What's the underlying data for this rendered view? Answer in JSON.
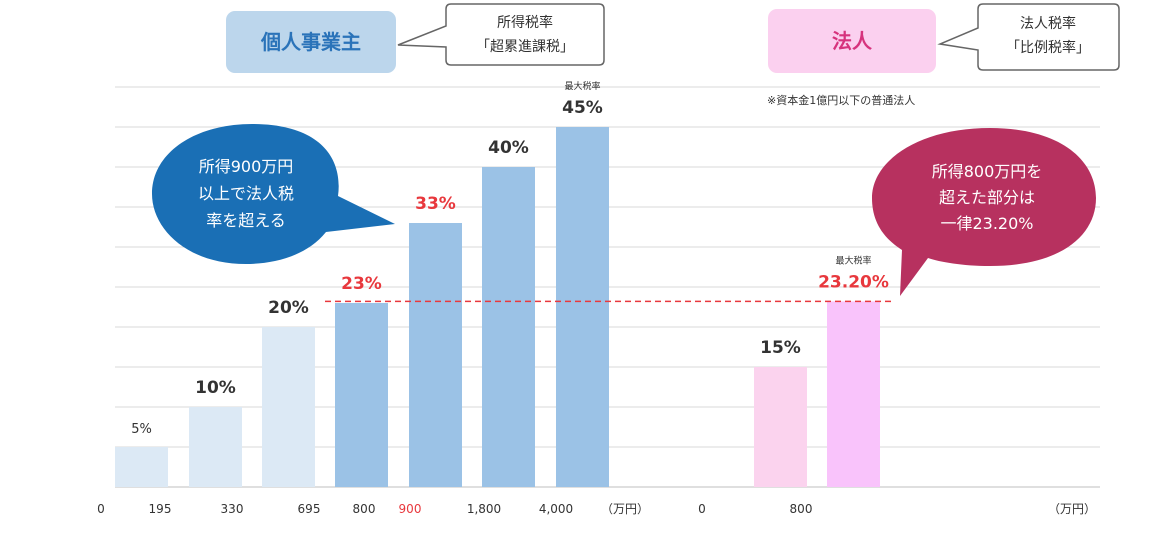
{
  "labels": {
    "individual_box": "個人事業主",
    "individual_callout": [
      "所得税率",
      "「超累進課税」"
    ],
    "corporate_box": "法人",
    "corporate_callout": [
      "法人税率",
      "「比例税率」"
    ],
    "note": "※資本金1億円以下の普通法人",
    "bubble_left": [
      "所得900万円",
      "以上で法人税",
      "率を超える"
    ],
    "bubble_right": [
      "所得800万円を",
      "超えた部分は",
      "一律23.20%"
    ],
    "max_rate": "最大税率"
  },
  "chart_data": [
    {
      "type": "bar",
      "name": "individual",
      "x_ticks": [
        "0",
        "195",
        "330",
        "695",
        "800",
        "900",
        "1,800",
        "4,000"
      ],
      "x_unit": "（万円）",
      "categories": [
        "0–195",
        "195–330",
        "330–695",
        "695–900",
        "900–1,800",
        "1,800–4,000",
        "4,000–"
      ],
      "values": [
        5,
        10,
        20,
        23,
        33,
        40,
        45
      ],
      "value_labels": [
        "5%",
        "10%",
        "20%",
        "23%",
        "33%",
        "40%",
        "45%"
      ],
      "highlight_indices": [
        3,
        4
      ],
      "max_index": 6,
      "ylim": [
        0,
        45
      ]
    },
    {
      "type": "bar",
      "name": "corporate",
      "x_ticks": [
        "0",
        "800"
      ],
      "x_unit": "（万円）",
      "categories": [
        "0–800",
        "800–"
      ],
      "values": [
        15,
        23.2
      ],
      "value_labels": [
        "15%",
        "23.20%"
      ],
      "highlight_indices": [
        1
      ],
      "max_index": 1,
      "ylim": [
        0,
        45
      ]
    }
  ],
  "reference_line": {
    "value": 23.2,
    "color": "#e8383d"
  },
  "colors": {
    "indiv_bar_light": "#dce9f5",
    "indiv_bar_dark": "#9bc2e6",
    "corp_bar_light": "#fbd3ee",
    "corp_bar_dark": "#f9c3fb",
    "highlight_text": "#e8383d",
    "indiv_box": "#bcd6ec",
    "corp_box": "#fbd0ef",
    "bubble_left": "#1a6fb5",
    "bubble_right": "#b7315f",
    "grid": "#d9d9d9"
  }
}
